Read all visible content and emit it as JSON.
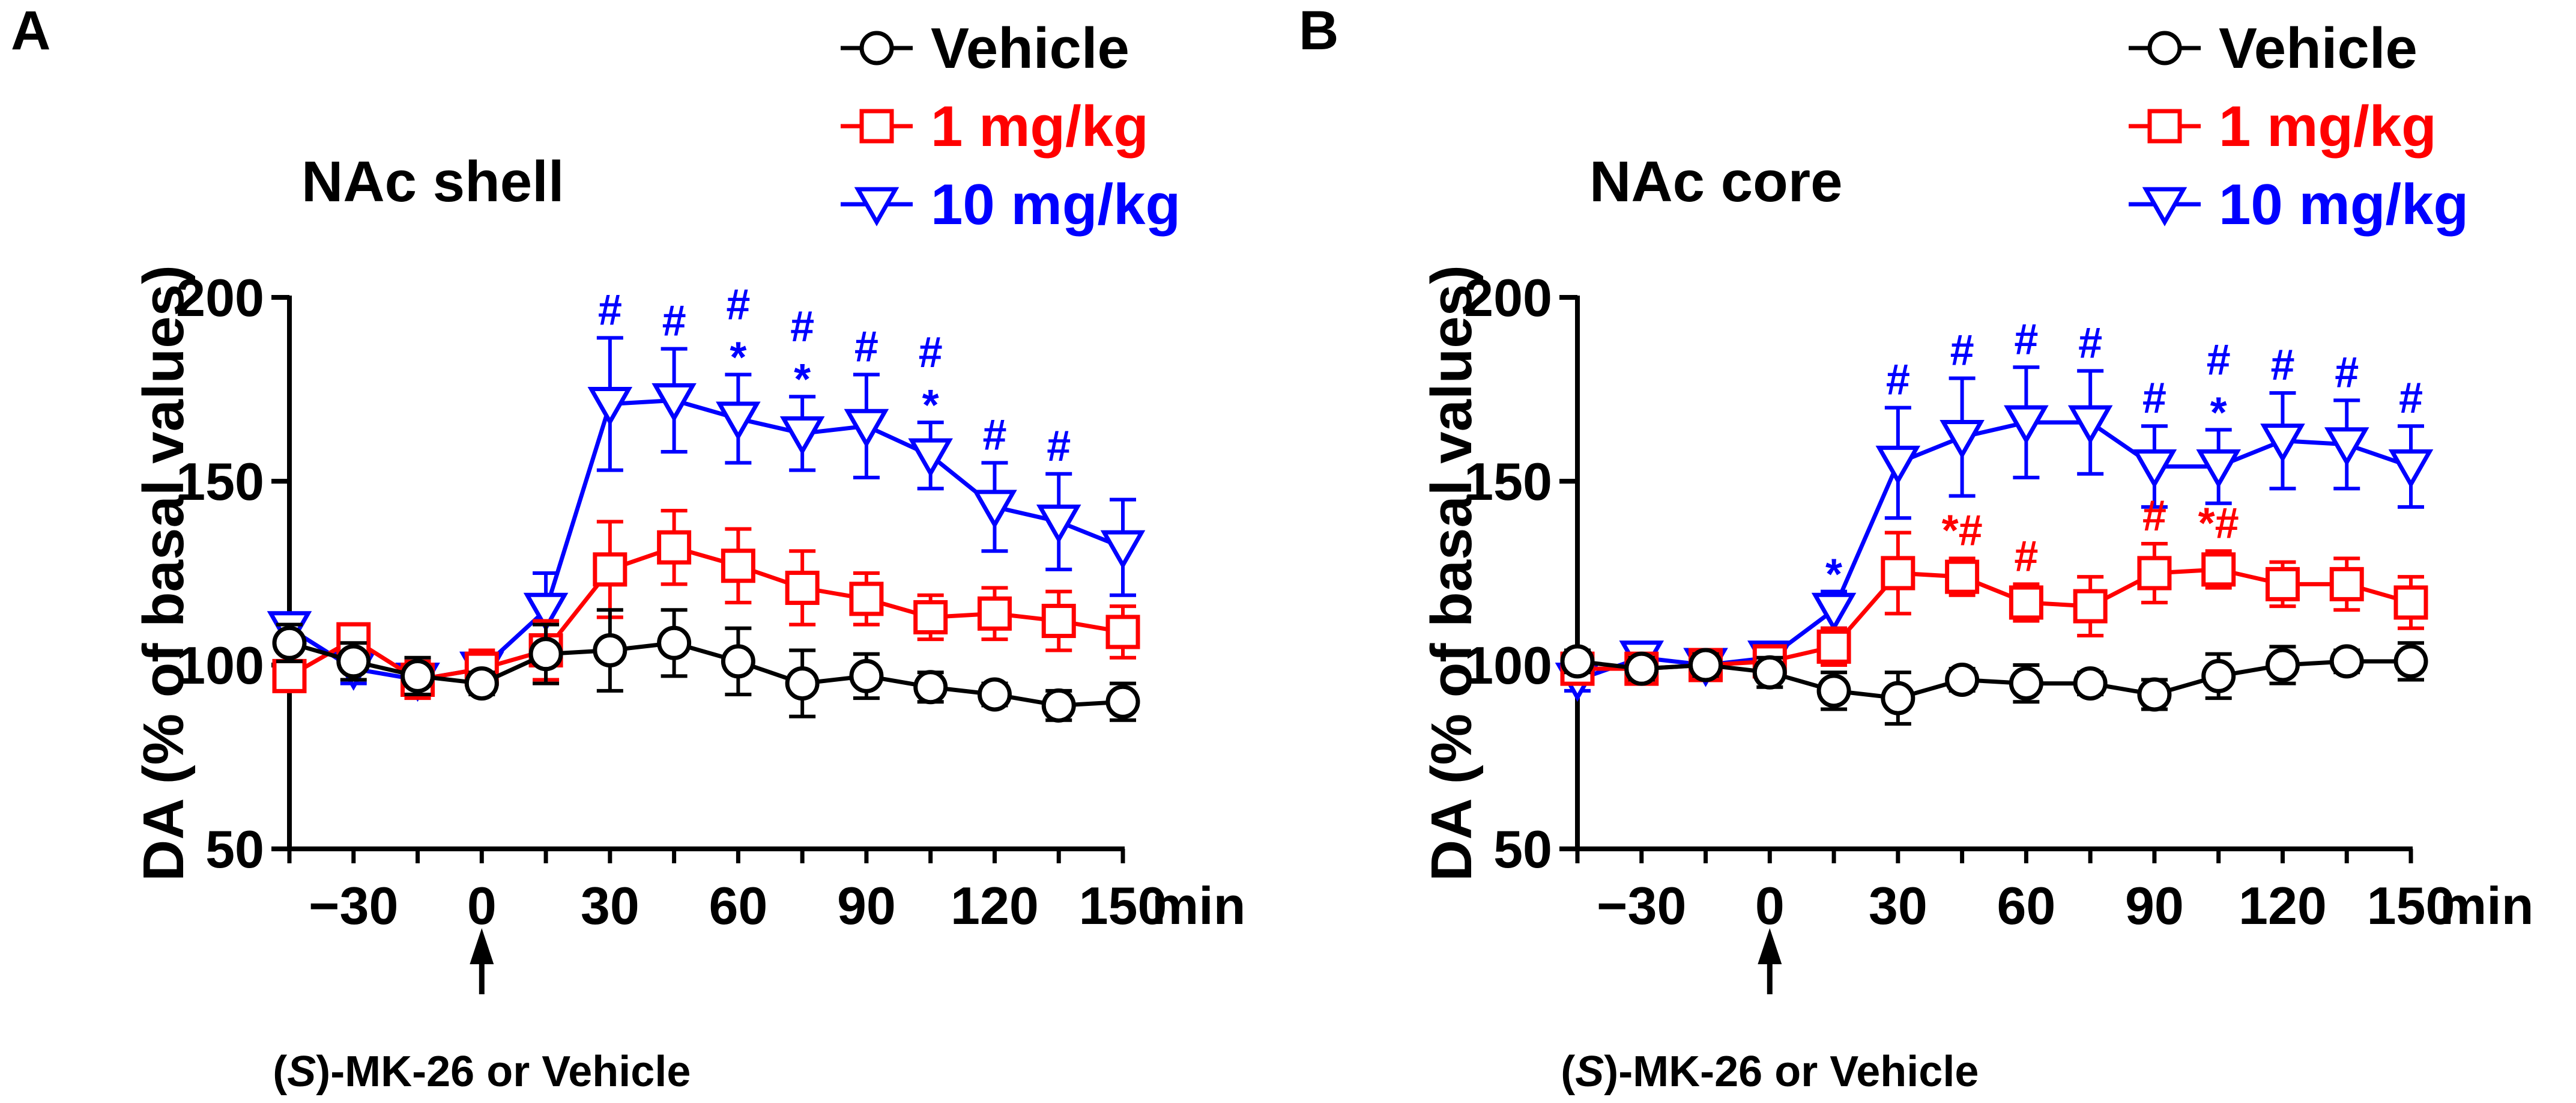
{
  "colors": {
    "vehicle": "#000000",
    "low": "#ff0000",
    "high": "#0000ff",
    "axis": "#000000"
  },
  "chart_data": [
    {
      "panel_label": "A",
      "title": "NAc shell",
      "type": "line",
      "ylabel": "DA (% of basal values)",
      "xunit": "min",
      "ylim": [
        50,
        200
      ],
      "xlim": [
        -45,
        150
      ],
      "yticks": [
        50,
        100,
        150,
        200
      ],
      "xticks": [
        -30,
        0,
        30,
        60,
        90,
        120,
        150
      ],
      "xtick_labels": [
        "−30",
        "0",
        "30",
        "60",
        "90",
        "120",
        "150"
      ],
      "arrow_label_prefix": "(",
      "arrow_label_italic": "S",
      "arrow_label_suffix": ")-MK-26 or Vehicle",
      "x": [
        -45,
        -30,
        -15,
        0,
        15,
        30,
        45,
        60,
        75,
        90,
        105,
        120,
        135,
        150
      ],
      "series": [
        {
          "key": "vehicle",
          "name": "Vehicle",
          "marker": "circle",
          "values": [
            106,
            101,
            97,
            95,
            103,
            104,
            106,
            101,
            95,
            97,
            94,
            92,
            89,
            90
          ],
          "errors": [
            5,
            5,
            5,
            3,
            8,
            11,
            9,
            9,
            9,
            6,
            4,
            3,
            4,
            5
          ]
        },
        {
          "key": "low",
          "name": "1 mg/kg",
          "marker": "square",
          "values": [
            97,
            107,
            96,
            99,
            104,
            126,
            132,
            127,
            121,
            118,
            113,
            114,
            112,
            109
          ],
          "errors": [
            4,
            4,
            5,
            5,
            8,
            13,
            10,
            10,
            10,
            7,
            6,
            7,
            8,
            7
          ]
        },
        {
          "key": "high",
          "name": "10 mg/kg",
          "marker": "triangle",
          "values": [
            110,
            99,
            96,
            99,
            115,
            171,
            172,
            167,
            163,
            165,
            157,
            143,
            139,
            132
          ],
          "errors": [
            4,
            4,
            4,
            4,
            10,
            18,
            14,
            12,
            10,
            14,
            9,
            12,
            13,
            13
          ]
        }
      ],
      "annotations": [
        {
          "series": "high",
          "x": 30,
          "lines": [
            "#"
          ]
        },
        {
          "series": "high",
          "x": 45,
          "lines": [
            "#"
          ]
        },
        {
          "series": "high",
          "x": 60,
          "lines": [
            "#",
            "*"
          ]
        },
        {
          "series": "high",
          "x": 75,
          "lines": [
            "#",
            "*"
          ]
        },
        {
          "series": "high",
          "x": 90,
          "lines": [
            "#"
          ]
        },
        {
          "series": "high",
          "x": 105,
          "lines": [
            "#",
            "*"
          ]
        },
        {
          "series": "high",
          "x": 120,
          "lines": [
            "#"
          ]
        },
        {
          "series": "high",
          "x": 135,
          "lines": [
            "#"
          ]
        }
      ]
    },
    {
      "panel_label": "B",
      "title": "NAc core",
      "type": "line",
      "ylabel": "DA (% of basal values)",
      "xunit": "min",
      "ylim": [
        50,
        200
      ],
      "xlim": [
        -45,
        150
      ],
      "yticks": [
        50,
        100,
        150,
        200
      ],
      "xticks": [
        -30,
        0,
        30,
        60,
        90,
        120,
        150
      ],
      "xtick_labels": [
        "−30",
        "0",
        "30",
        "60",
        "90",
        "120",
        "150"
      ],
      "arrow_label_prefix": "(",
      "arrow_label_italic": "S",
      "arrow_label_suffix": ")-MK-26 or Vehicle",
      "x": [
        -45,
        -30,
        -15,
        0,
        15,
        30,
        45,
        60,
        75,
        90,
        105,
        120,
        135,
        150
      ],
      "series": [
        {
          "key": "vehicle",
          "name": "Vehicle",
          "marker": "circle",
          "values": [
            101,
            99,
            100,
            98,
            93,
            91,
            96,
            95,
            95,
            92,
            97,
            100,
            101,
            101
          ],
          "errors": [
            3,
            3,
            3,
            4,
            5,
            7,
            3,
            5,
            3,
            4,
            6,
            5,
            3,
            5
          ]
        },
        {
          "key": "low",
          "name": "1 mg/kg",
          "marker": "square",
          "values": [
            99,
            99,
            100,
            101,
            105,
            125,
            124,
            117,
            116,
            125,
            126,
            122,
            122,
            117
          ],
          "errors": [
            3,
            3,
            3,
            4,
            5,
            11,
            5,
            5,
            8,
            8,
            5,
            6,
            7,
            7
          ]
        },
        {
          "key": "high",
          "name": "10 mg/kg",
          "marker": "triangle",
          "values": [
            96,
            102,
            100,
            102,
            115,
            155,
            162,
            166,
            166,
            154,
            154,
            161,
            160,
            154
          ],
          "errors": [
            3,
            3,
            3,
            3,
            5,
            15,
            16,
            15,
            14,
            11,
            10,
            13,
            12,
            11
          ]
        }
      ],
      "annotations": [
        {
          "series": "high",
          "x": 15,
          "lines": [
            "*"
          ]
        },
        {
          "series": "high",
          "x": 30,
          "lines": [
            "#"
          ]
        },
        {
          "series": "high",
          "x": 45,
          "lines": [
            "#"
          ]
        },
        {
          "series": "high",
          "x": 60,
          "lines": [
            "#"
          ]
        },
        {
          "series": "high",
          "x": 75,
          "lines": [
            "#"
          ]
        },
        {
          "series": "high",
          "x": 90,
          "lines": [
            "#"
          ]
        },
        {
          "series": "high",
          "x": 105,
          "lines": [
            "#",
            "*"
          ]
        },
        {
          "series": "high",
          "x": 120,
          "lines": [
            "#"
          ]
        },
        {
          "series": "high",
          "x": 135,
          "lines": [
            "#"
          ]
        },
        {
          "series": "high",
          "x": 150,
          "lines": [
            "#"
          ]
        },
        {
          "series": "low",
          "x": 45,
          "lines": [
            "*#"
          ]
        },
        {
          "series": "low",
          "x": 60,
          "lines": [
            "#"
          ]
        },
        {
          "series": "low",
          "x": 90,
          "lines": [
            "#"
          ]
        },
        {
          "series": "low",
          "x": 105,
          "lines": [
            "*#"
          ]
        }
      ]
    }
  ]
}
